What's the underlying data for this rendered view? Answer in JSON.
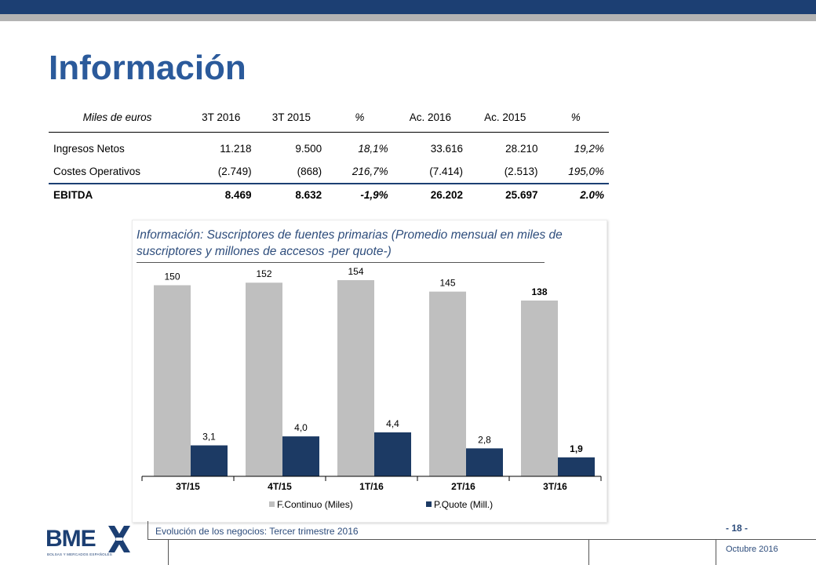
{
  "page": {
    "title": "Información"
  },
  "table": {
    "headers": [
      "Miles de euros",
      "3T 2016",
      "3T 2015",
      "%",
      "Ac. 2016",
      "Ac. 2015",
      "%"
    ],
    "rows": [
      {
        "label": "Ingresos Netos",
        "q2016": "11.218",
        "q2015": "9.500",
        "qpct": "18,1%",
        "ac2016": "33.616",
        "ac2015": "28.210",
        "acpct": "19,2%"
      },
      {
        "label": "Costes Operativos",
        "q2016": "(2.749)",
        "q2015": "(868)",
        "qpct": "216,7%",
        "ac2016": "(7.414)",
        "ac2015": "(2.513)",
        "acpct": "195,0%"
      }
    ],
    "ebitda": {
      "label": "EBITDA",
      "q2016": "8.469",
      "q2015": "8.632",
      "qpct": "-1,9%",
      "ac2016": "26.202",
      "ac2015": "25.697",
      "acpct": "2.0%"
    }
  },
  "chart_data": {
    "type": "bar",
    "title": "Información: Suscriptores de fuentes primarias (Promedio mensual en miles de suscriptores y millones de accesos -per quote-)",
    "categories": [
      "3T/15",
      "4T/15",
      "1T/16",
      "2T/16",
      "3T/16"
    ],
    "series": [
      {
        "name": "F.Continuo (Miles)",
        "values": [
          150,
          152,
          154,
          145,
          138
        ],
        "labels": [
          "150",
          "152",
          "154",
          "145",
          "138"
        ],
        "color": "#bfbfbf"
      },
      {
        "name": "P.Quote (Mill.)",
        "values": [
          3.1,
          4.0,
          4.4,
          2.8,
          1.9
        ],
        "labels": [
          "3,1",
          "4,0",
          "4,4",
          "2,8",
          "1,9"
        ],
        "color": "#1c3a64"
      }
    ],
    "legend": "bottom",
    "grid": false
  },
  "footer": {
    "text": "Evolución de los negocios: Tercer trimestre 2016",
    "page_number": "- 18 -",
    "date": "Octubre 2016"
  },
  "logo": {
    "name": "BME",
    "tagline": "BOLSAS Y MERCADOS ESPAÑOLES"
  },
  "colors": {
    "brand": "#1c3f73",
    "title": "#2b5a9b"
  }
}
